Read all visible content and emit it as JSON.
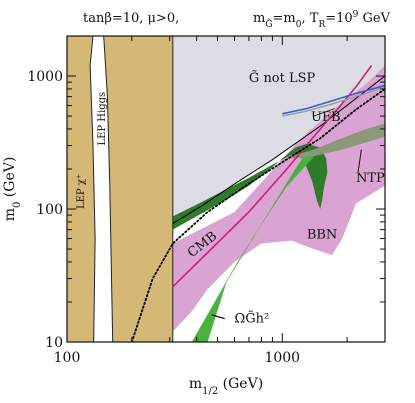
{
  "chart_data": {
    "type": "area",
    "title": "tanβ=10,  μ>0,        m_G̃=m₀,  T_R=10⁹ GeV",
    "title_parts": {
      "left": "tanβ=10,  μ>0,",
      "right_prefix": "m",
      "right_sub": "G̃",
      "right_mid": "=m",
      "right_sub2": "0",
      "right_tr": ",  T",
      "right_tr_sub": "R",
      "right_eq": "=10",
      "right_exp": "9",
      "right_unit": " GeV"
    },
    "xlabel": {
      "main": "m",
      "sub": "1/2",
      "unit": " (GeV)"
    },
    "ylabel": {
      "main": "m",
      "sub": "0",
      "unit": " (GeV)"
    },
    "xscale": "log",
    "yscale": "log",
    "xlim": [
      100,
      3000
    ],
    "ylim": [
      10,
      2000
    ],
    "x_ticks": [
      100,
      1000
    ],
    "x_tick_labels": [
      "100",
      "1000"
    ],
    "y_ticks": [
      10,
      100,
      1000
    ],
    "y_tick_labels": [
      "10",
      "100",
      "1000"
    ],
    "colors": {
      "gray_region": "#dcdce4",
      "tan_region": "#d6b876",
      "pink_band": "#d9a3d2",
      "dark_green": "#2f7a2b",
      "light_green": "#49b23c",
      "olive": "#8d9779",
      "magenta_line": "#cc1f72",
      "blue_line": "#3a5fc8",
      "ufb_gray": "#9a9a9a"
    },
    "regions": [
      {
        "name": "lep-chargino",
        "fill": "tan_region",
        "points": [
          [
            100,
            2000
          ],
          [
            132,
            2000
          ],
          [
            128,
            1200
          ],
          [
            132,
            300
          ],
          [
            135,
            60
          ],
          [
            133,
            10
          ],
          [
            100,
            10
          ]
        ]
      },
      {
        "name": "lep-higgs",
        "fill": "tan_region",
        "points": [
          [
            133,
            2000
          ],
          [
            310,
            2000
          ],
          [
            310,
            10
          ],
          [
            163,
            10
          ],
          [
            158,
            150
          ],
          [
            154,
            700
          ],
          [
            148,
            2000
          ]
        ]
      },
      {
        "name": "gravitino-not-lsp",
        "fill": "gray_region",
        "points": [
          [
            310,
            2000
          ],
          [
            3000,
            2000
          ],
          [
            3000,
            1000
          ],
          [
            1500,
            420
          ],
          [
            900,
            235
          ],
          [
            620,
            160
          ],
          [
            420,
            105
          ],
          [
            310,
            78
          ]
        ]
      },
      {
        "name": "pink-band",
        "fill": "pink_band",
        "points": [
          [
            310,
            55
          ],
          [
            600,
            95
          ],
          [
            900,
            195
          ],
          [
            1200,
            330
          ],
          [
            1700,
            550
          ],
          [
            2500,
            900
          ],
          [
            3000,
            1200
          ],
          [
            3000,
            150
          ],
          [
            2200,
            110
          ],
          [
            1900,
            60
          ],
          [
            1700,
            45
          ],
          [
            1400,
            50
          ],
          [
            1100,
            58
          ],
          [
            800,
            55
          ],
          [
            600,
            40
          ],
          [
            450,
            25
          ],
          [
            380,
            17
          ],
          [
            310,
            12
          ]
        ]
      }
    ],
    "bands": [
      {
        "name": "dark-green-band",
        "fill": "dark_green",
        "points": [
          [
            310,
            70
          ],
          [
            420,
            92
          ],
          [
            550,
            118
          ],
          [
            700,
            150
          ],
          [
            850,
            190
          ],
          [
            1000,
            240
          ],
          [
            1150,
            290
          ],
          [
            1300,
            310
          ],
          [
            1500,
            290
          ],
          [
            1600,
            240
          ],
          [
            1620,
            190
          ],
          [
            1560,
            145
          ],
          [
            1530,
            115
          ],
          [
            1500,
            100
          ],
          [
            1450,
            115
          ],
          [
            1380,
            160
          ],
          [
            1250,
            240
          ],
          [
            1100,
            255
          ],
          [
            900,
            215
          ],
          [
            700,
            172
          ],
          [
            500,
            130
          ],
          [
            400,
            108
          ],
          [
            310,
            88
          ]
        ]
      },
      {
        "name": "light-green-band",
        "fill": "light_green",
        "points": [
          [
            380,
            10
          ],
          [
            620,
            40
          ],
          [
            900,
            105
          ],
          [
            1150,
            200
          ],
          [
            1300,
            270
          ],
          [
            1400,
            245
          ],
          [
            1260,
            205
          ],
          [
            1050,
            148
          ],
          [
            780,
            72
          ],
          [
            550,
            28
          ],
          [
            450,
            10
          ]
        ]
      },
      {
        "name": "olive-band",
        "fill": "olive",
        "points": [
          [
            1050,
            245
          ],
          [
            1400,
            280
          ],
          [
            1800,
            330
          ],
          [
            2400,
            395
          ],
          [
            3000,
            440
          ],
          [
            3000,
            350
          ],
          [
            2500,
            320
          ],
          [
            1900,
            280
          ],
          [
            1400,
            250
          ],
          [
            1150,
            240
          ]
        ]
      }
    ],
    "lines": [
      {
        "name": "region-boundary",
        "color": "#000000",
        "style": "solid",
        "width": 1,
        "points": [
          [
            310,
            78
          ],
          [
            420,
            105
          ],
          [
            620,
            160
          ],
          [
            900,
            235
          ],
          [
            1500,
            420
          ],
          [
            3000,
            1000
          ]
        ]
      },
      {
        "name": "magenta-line",
        "color": "magenta_line",
        "style": "solid",
        "width": 1.6,
        "points": [
          [
            310,
            26
          ],
          [
            700,
            95
          ],
          [
            1050,
            200
          ],
          [
            1400,
            350
          ],
          [
            1800,
            560
          ],
          [
            2200,
            830
          ],
          [
            2600,
            1200
          ]
        ]
      },
      {
        "name": "dotted-line",
        "color": "#000000",
        "style": "dotted",
        "width": 1.8,
        "points": [
          [
            200,
            10
          ],
          [
            250,
            30
          ],
          [
            310,
            55
          ],
          [
            450,
            95
          ],
          [
            700,
            155
          ],
          [
            1000,
            225
          ],
          [
            1500,
            340
          ],
          [
            2200,
            560
          ],
          [
            3000,
            800
          ]
        ]
      },
      {
        "name": "blue-line",
        "color": "blue_line",
        "style": "solid",
        "width": 1.6,
        "points": [
          [
            1000,
            520
          ],
          [
            1300,
            570
          ],
          [
            1700,
            650
          ],
          [
            2200,
            740
          ],
          [
            2700,
            810
          ],
          [
            3000,
            850
          ]
        ]
      },
      {
        "name": "ufb-line",
        "color": "ufb_gray",
        "style": "solid",
        "width": 1.4,
        "points": [
          [
            1000,
            500
          ],
          [
            1300,
            545
          ],
          [
            1700,
            615
          ],
          [
            2200,
            700
          ],
          [
            3000,
            830
          ]
        ]
      }
    ],
    "annotations": [
      {
        "name": "gravitino-not-lsp-label",
        "text": "G̃ not LSP",
        "x": 700,
        "y": 900
      },
      {
        "name": "ufb-label",
        "text": "UFB",
        "x": 1360,
        "y": 460
      },
      {
        "name": "ntp-label",
        "text": "NTP",
        "x": 2200,
        "y": 160
      },
      {
        "name": "bbn-label",
        "text": "BBN",
        "x": 1300,
        "y": 60
      },
      {
        "name": "cmb-label",
        "text": "CMB",
        "x": 380,
        "y": 43
      },
      {
        "name": "omega-label",
        "text": "ΩG̃h²",
        "x": 600,
        "y": 14
      },
      {
        "name": "lep-chargino-label",
        "text": "LEP χ⁺",
        "x": 120,
        "y": 100
      },
      {
        "name": "lep-higgs-label",
        "text": "LEP Higgs",
        "x": 150,
        "y": 300
      }
    ]
  }
}
